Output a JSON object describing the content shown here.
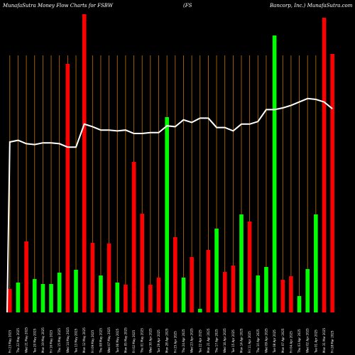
{
  "chart_data": {
    "type": "bar",
    "title_parts": [
      "MunafaSutra  Money Flow  Charts for FSBW",
      "(FS",
      "Bancorp, Inc.) MunafaSutra.com"
    ],
    "categories": [
      "Fri 23 May 2025",
      "Thu 22 May 2025",
      "Wed 21 May 2025",
      "Tue 20 May 2025",
      "Mon 19 May 2025",
      "Fri 16 May 2025",
      "Thu 15 May 2025",
      "Wed 14 May 2025",
      "Tue 13 May 2025",
      "Mon 12 May 2025",
      "Fri 09 May 2025",
      "Thu 08 May 2025",
      "Wed 07 May 2025",
      "Tue 06 May 2025",
      "Mon 05 May 2025",
      "Fri 02 May 2025",
      "Thu 01 May 2025",
      "Wed 30 Apr 2025",
      "Tue 29 Apr 2025",
      "Mon 28 Apr 2025",
      "Fri 25 Apr 2025",
      "Thu 24 Apr 2025",
      "Wed 23 Apr 2025",
      "Tue 22 Apr 2025",
      "Mon 21 Apr 2025",
      "Thu 17 Apr 2025",
      "Wed 16 Apr 2025",
      "Tue 15 Apr 2025",
      "Mon 14 Apr 2025",
      "Fri 11 Apr 2025",
      "Thu 10 Apr 2025",
      "Wed 09 Apr 2025",
      "Tue 08 Apr 2025",
      "Mon 07 Apr 2025",
      "Fri 04 Apr 2025",
      "Thu 03 Apr 2025",
      "Wed 02 Apr 2025",
      "Tue 01 Apr 2025",
      "Mon 31 Mar 2025",
      "Fri 28 Mar 2025"
    ],
    "series": [
      {
        "values": [
          33,
          42,
          100,
          47,
          40,
          40,
          56,
          350,
          60,
          420,
          98,
          52,
          97,
          42,
          39,
          212,
          139,
          39,
          49,
          275,
          106,
          49,
          78,
          5,
          88,
          118,
          57,
          66,
          138,
          128,
          52,
          64,
          390,
          46,
          51,
          23,
          61,
          138,
          415,
          364
        ],
        "colors": [
          "red",
          "green",
          "red",
          "green",
          "green",
          "green",
          "green",
          "red",
          "green",
          "red",
          "red",
          "green",
          "red",
          "green",
          "red",
          "red",
          "red",
          "red",
          "red",
          "green",
          "red",
          "green",
          "red",
          "green",
          "red",
          "green",
          "red",
          "red",
          "green",
          "red",
          "green",
          "green",
          "green",
          "red",
          "red",
          "green",
          "green",
          "green",
          "red",
          "red"
        ]
      },
      {
        "type": "line",
        "values": [
          70,
          70.4,
          69.6,
          69.4,
          69.8,
          69.8,
          69.6,
          68.8,
          68.8,
          74.2,
          73.6,
          72.8,
          72.8,
          72.6,
          72.8,
          72,
          72,
          72.2,
          72.2,
          73.8,
          73.6,
          75.2,
          74.6,
          75.6,
          75.6,
          73.4,
          73.4,
          72.6,
          74.2,
          74.2,
          74.8,
          77.6,
          77.6,
          78,
          78.6,
          79.4,
          80.2,
          80,
          79.4,
          77.8
        ]
      }
    ],
    "ylim": [
      0,
      420
    ],
    "line_ylim": [
      30,
      100
    ],
    "grid": "vertical",
    "colors": {
      "up": "#00ff00",
      "down": "#ff0000",
      "line": "#ffffff",
      "grid": "#c27400",
      "background": "#000000"
    }
  }
}
